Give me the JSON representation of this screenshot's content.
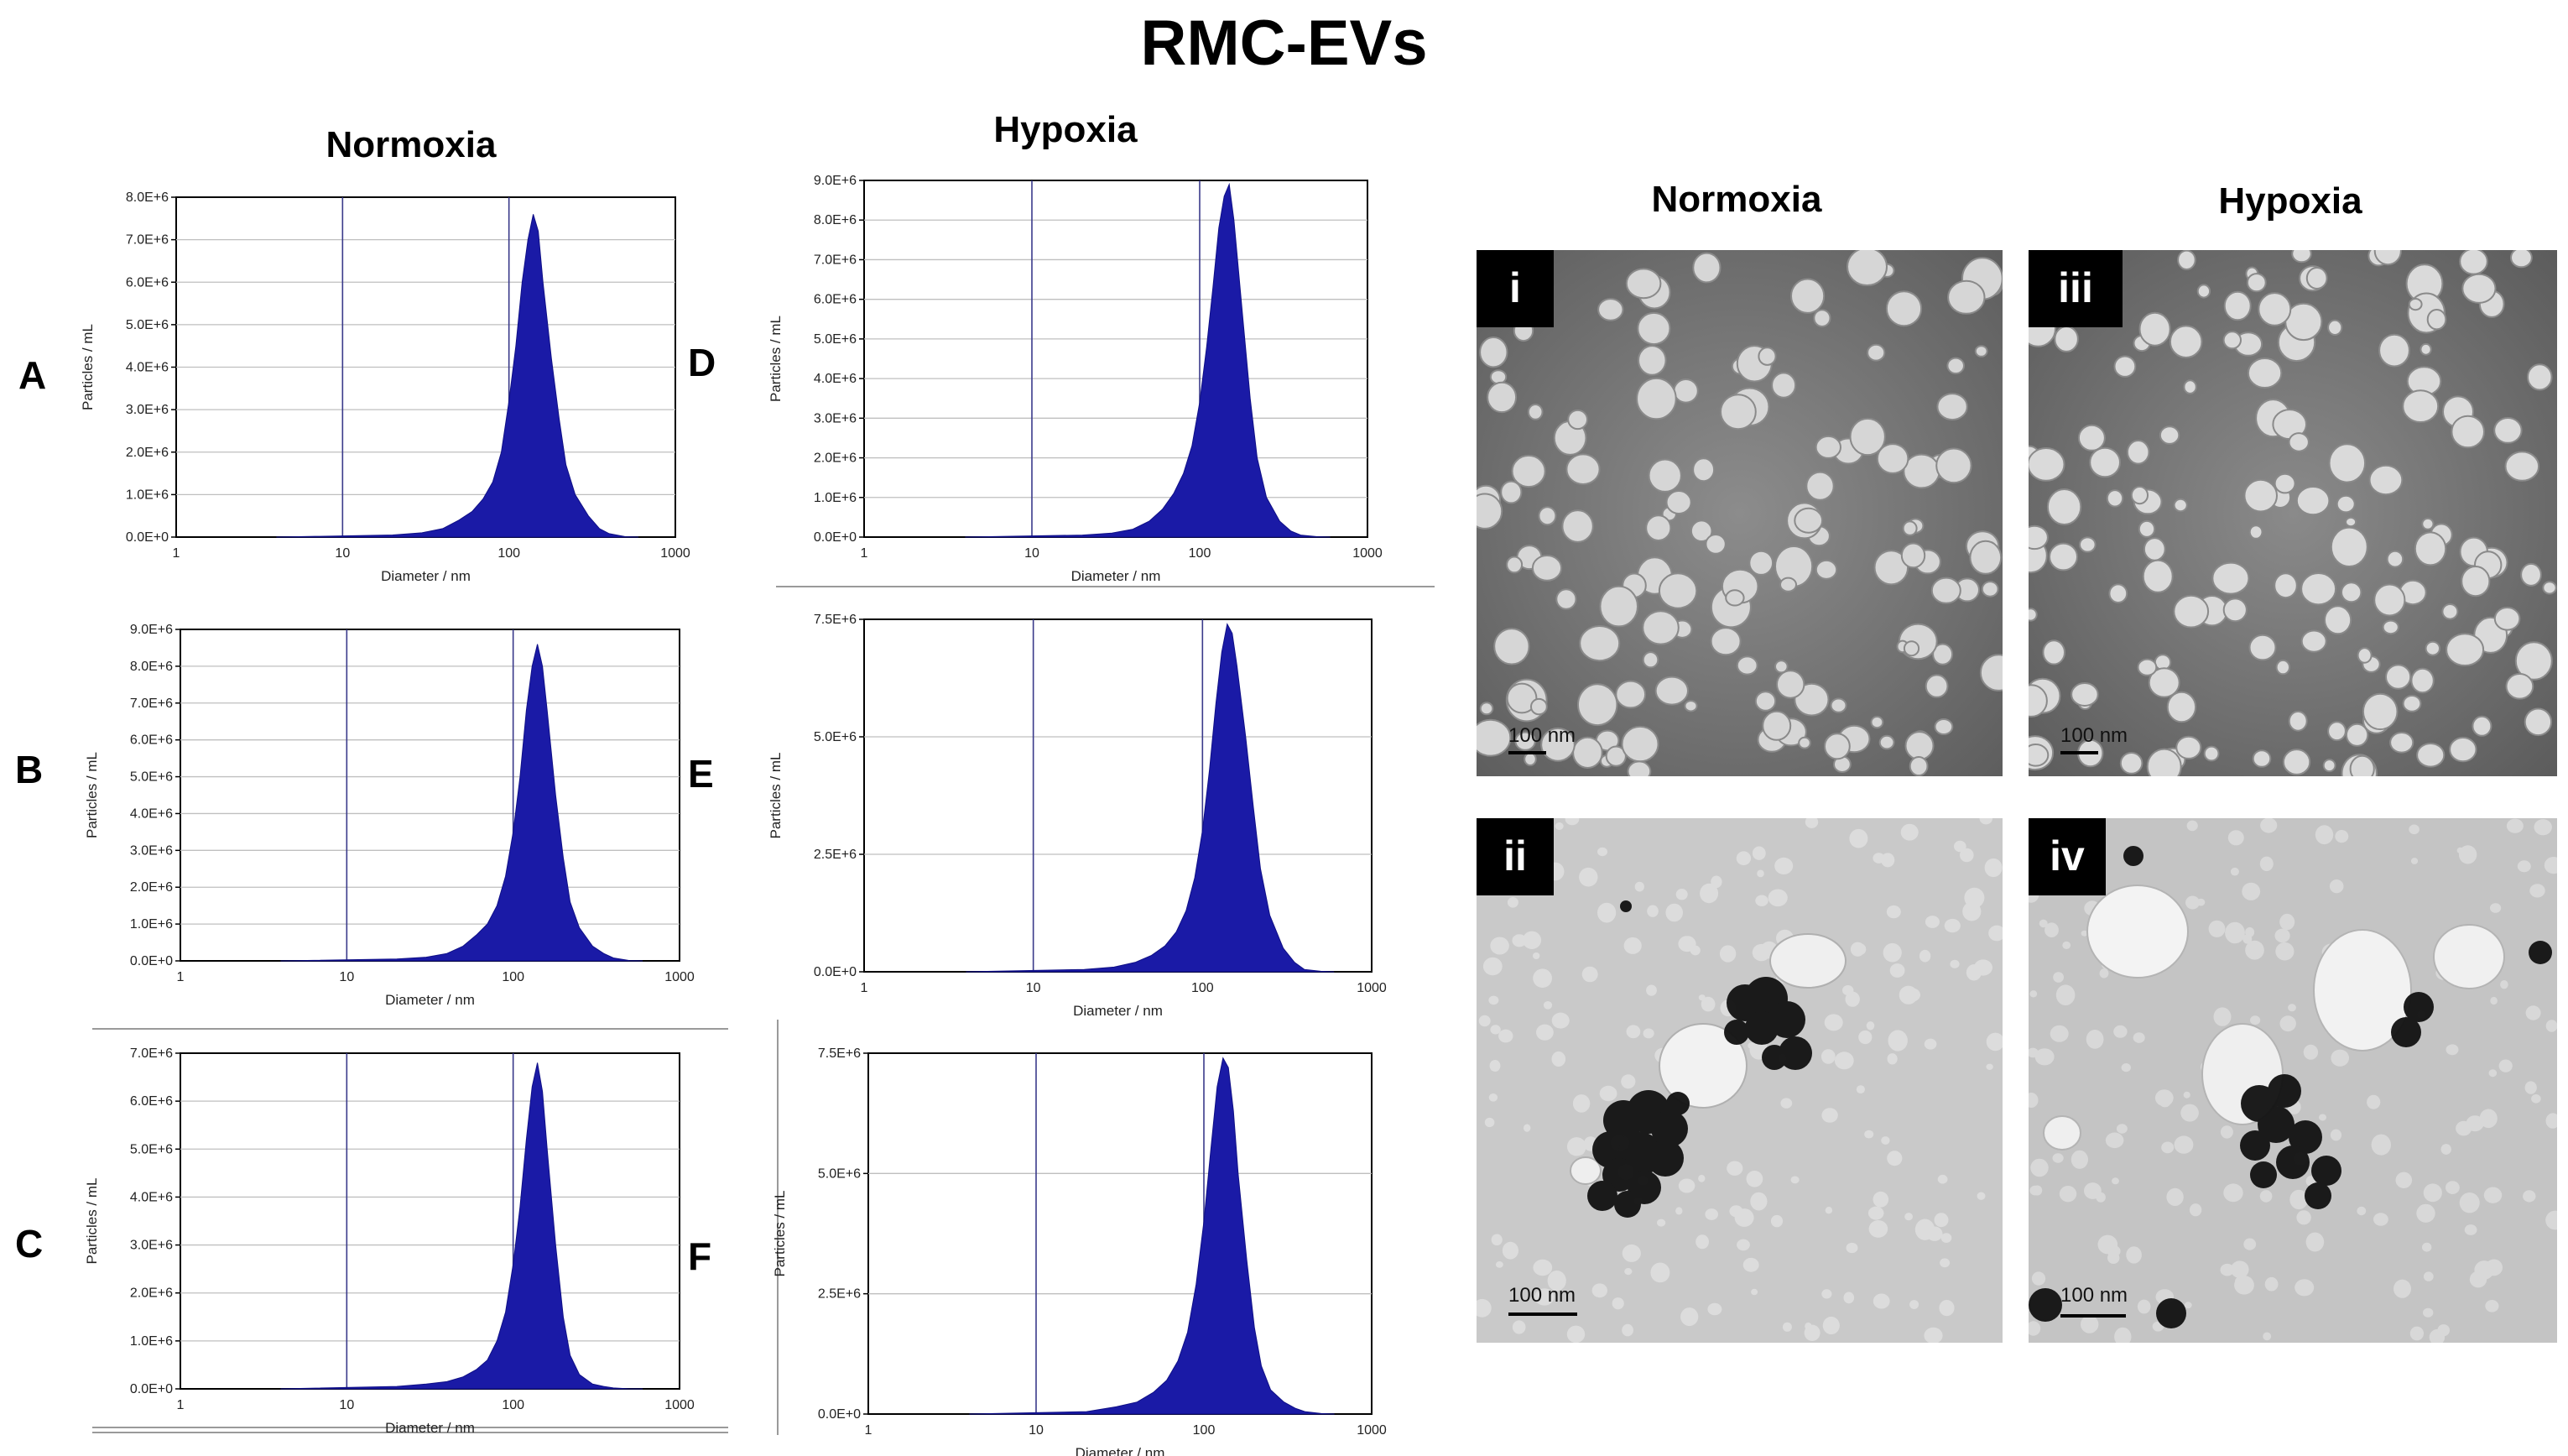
{
  "figure": {
    "title": "RMC-EVs",
    "nta_headers": {
      "left": "Normoxia",
      "right": "Hypoxia"
    },
    "tem_headers": {
      "left": "Normoxia",
      "right": "Hypoxia"
    }
  },
  "colors": {
    "histogram": "#1a1aa6",
    "gridline_vertical": "#3a3a8a",
    "tag_background": "#000000"
  },
  "chart_data": [
    {
      "panel": "A",
      "type": "area",
      "condition": "Normoxia",
      "xlabel": "Diameter / nm",
      "ylabel": "Particles / mL",
      "x_scale": "log",
      "xlim": [
        1,
        1000
      ],
      "ylim": [
        0,
        8000000
      ],
      "x_tick_labels": [
        "1",
        "10",
        "100",
        "1000"
      ],
      "y_tick_labels": [
        "0.0E+0",
        "1.0E+6",
        "2.0E+6",
        "3.0E+6",
        "4.0E+6",
        "5.0E+6",
        "6.0E+6",
        "7.0E+6",
        "8.0E+6"
      ],
      "x": [
        4,
        20,
        30,
        40,
        50,
        60,
        70,
        80,
        90,
        100,
        110,
        120,
        130,
        140,
        150,
        160,
        180,
        200,
        220,
        250,
        300,
        350,
        400,
        500,
        600
      ],
      "y": [
        0,
        50000,
        100000,
        200000,
        400000,
        600000,
        900000,
        1300000,
        2000000,
        3200000,
        4500000,
        6000000,
        7000000,
        7600000,
        7200000,
        6000000,
        4200000,
        2800000,
        1700000,
        1000000,
        500000,
        200000,
        80000,
        10000,
        0
      ]
    },
    {
      "panel": "B",
      "type": "area",
      "condition": "Normoxia",
      "xlabel": "Diameter / nm",
      "ylabel": "Particles / mL",
      "x_scale": "log",
      "xlim": [
        1,
        1000
      ],
      "ylim": [
        0,
        9000000
      ],
      "x_tick_labels": [
        "1",
        "10",
        "100",
        "1000"
      ],
      "y_tick_labels": [
        "0.0E+0",
        "1.0E+6",
        "2.0E+6",
        "3.0E+6",
        "4.0E+6",
        "5.0E+6",
        "6.0E+6",
        "7.0E+6",
        "8.0E+6",
        "9.0E+6"
      ],
      "x": [
        4,
        20,
        30,
        40,
        50,
        60,
        70,
        80,
        90,
        100,
        110,
        120,
        130,
        140,
        150,
        160,
        180,
        200,
        220,
        250,
        300,
        350,
        400,
        500,
        600
      ],
      "y": [
        0,
        50000,
        100000,
        200000,
        400000,
        700000,
        1000000,
        1500000,
        2300000,
        3500000,
        5000000,
        6800000,
        8000000,
        8600000,
        8000000,
        6800000,
        4500000,
        2800000,
        1600000,
        900000,
        400000,
        200000,
        80000,
        10000,
        0
      ]
    },
    {
      "panel": "C",
      "type": "area",
      "condition": "Normoxia",
      "xlabel": "Diameter / nm",
      "ylabel": "Particles / mL",
      "x_scale": "log",
      "xlim": [
        1,
        1000
      ],
      "ylim": [
        0,
        7000000
      ],
      "x_tick_labels": [
        "1",
        "10",
        "100",
        "1000"
      ],
      "y_tick_labels": [
        "0.0E+0",
        "1.0E+6",
        "2.0E+6",
        "3.0E+6",
        "4.0E+6",
        "5.0E+6",
        "6.0E+6",
        "7.0E+6"
      ],
      "x": [
        4,
        20,
        30,
        40,
        50,
        60,
        70,
        80,
        90,
        100,
        110,
        120,
        130,
        140,
        150,
        160,
        180,
        200,
        220,
        250,
        300,
        350,
        400,
        500,
        600
      ],
      "y": [
        0,
        50000,
        100000,
        150000,
        250000,
        400000,
        600000,
        1000000,
        1600000,
        2600000,
        3800000,
        5200000,
        6300000,
        6800000,
        6200000,
        5000000,
        3000000,
        1500000,
        700000,
        300000,
        100000,
        50000,
        20000,
        0,
        0
      ]
    },
    {
      "panel": "D",
      "type": "area",
      "condition": "Hypoxia",
      "xlabel": "Diameter / nm",
      "ylabel": "Particles / mL",
      "x_scale": "log",
      "xlim": [
        1,
        1000
      ],
      "ylim": [
        0,
        9000000
      ],
      "x_tick_labels": [
        "1",
        "10",
        "100",
        "1000"
      ],
      "y_tick_labels": [
        "0.0E+0",
        "1.0E+6",
        "2.0E+6",
        "3.0E+6",
        "4.0E+6",
        "5.0E+6",
        "6.0E+6",
        "7.0E+6",
        "8.0E+6",
        "9.0E+6"
      ],
      "x": [
        4,
        20,
        30,
        40,
        50,
        60,
        70,
        80,
        90,
        100,
        110,
        120,
        130,
        140,
        150,
        160,
        180,
        200,
        220,
        250,
        300,
        350,
        400,
        500,
        600
      ],
      "y": [
        0,
        50000,
        100000,
        200000,
        400000,
        700000,
        1100000,
        1600000,
        2300000,
        3400000,
        4800000,
        6300000,
        7800000,
        8600000,
        8900000,
        8000000,
        5600000,
        3500000,
        2000000,
        1000000,
        400000,
        150000,
        50000,
        10000,
        0
      ]
    },
    {
      "panel": "E",
      "type": "area",
      "condition": "Hypoxia",
      "xlabel": "Diameter / nm",
      "ylabel": "Particles / mL",
      "x_scale": "log",
      "xlim": [
        1,
        1000
      ],
      "ylim": [
        0,
        7500000
      ],
      "x_tick_labels": [
        "1",
        "10",
        "100",
        "1000"
      ],
      "y_tick_labels": [
        "0.0E+0",
        "2.5E+6",
        "5.0E+6",
        "7.5E+6"
      ],
      "x": [
        4,
        20,
        30,
        40,
        50,
        60,
        70,
        80,
        90,
        100,
        110,
        120,
        130,
        140,
        150,
        160,
        180,
        200,
        220,
        250,
        300,
        350,
        400,
        500,
        600
      ],
      "y": [
        0,
        50000,
        100000,
        200000,
        350000,
        550000,
        850000,
        1300000,
        2000000,
        3000000,
        4300000,
        5700000,
        6800000,
        7400000,
        7200000,
        6500000,
        5000000,
        3500000,
        2200000,
        1200000,
        500000,
        200000,
        50000,
        10000,
        0
      ]
    },
    {
      "panel": "F",
      "type": "area",
      "condition": "Hypoxia",
      "xlabel": "Diameter / nm",
      "ylabel": "Particles / mL",
      "x_scale": "log",
      "xlim": [
        1,
        1000
      ],
      "ylim": [
        0,
        7500000
      ],
      "x_tick_labels": [
        "1",
        "10",
        "100",
        "1000"
      ],
      "y_tick_labels": [
        "0.0E+0",
        "2.5E+6",
        "5.0E+6",
        "7.5E+6"
      ],
      "x": [
        4,
        20,
        30,
        40,
        50,
        60,
        70,
        80,
        90,
        100,
        110,
        120,
        130,
        140,
        150,
        160,
        180,
        200,
        220,
        250,
        300,
        350,
        400,
        500,
        600
      ],
      "y": [
        0,
        50000,
        150000,
        250000,
        450000,
        700000,
        1100000,
        1700000,
        2700000,
        4000000,
        5500000,
        6800000,
        7400000,
        7200000,
        6300000,
        5000000,
        3200000,
        1800000,
        1000000,
        500000,
        250000,
        120000,
        50000,
        10000,
        0
      ]
    }
  ],
  "tem_panels": [
    {
      "tag": "i",
      "scale_label": "100 nm"
    },
    {
      "tag": "iii",
      "scale_label": "100 nm"
    },
    {
      "tag": "ii",
      "scale_label": "100 nm"
    },
    {
      "tag": "iv",
      "scale_label": "100 nm"
    }
  ]
}
